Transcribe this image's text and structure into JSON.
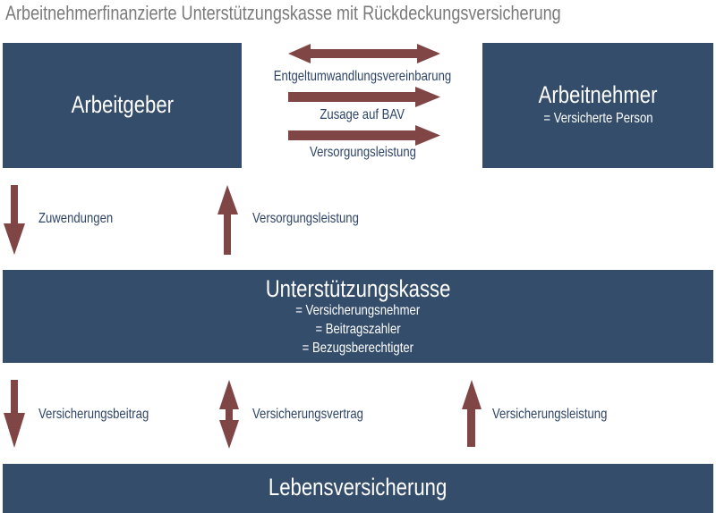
{
  "title": "Arbeitnehmerfinanzierte Unterstützungskasse mit Rückdeckungsversicherung",
  "colors": {
    "box": "#344d6b",
    "arrow": "#804545",
    "label": "#2e4467",
    "title": "#7a7a7a"
  },
  "nodes": {
    "arbeitgeber": {
      "title": "Arbeitgeber"
    },
    "arbeitnehmer": {
      "title": "Arbeitnehmer",
      "subtitle": "= Versicherte Person"
    },
    "unterstuetzungskasse": {
      "title": "Unterstützungskasse",
      "lines": [
        "= Versicherungsnehmer",
        "= Beitragszahler",
        "= Bezugsberechtigter"
      ]
    },
    "lebensversicherung": {
      "title": "Lebensversicherung"
    }
  },
  "edges": {
    "entgeltumwandlung": {
      "label": "Entgeltumwandlungsvereinbarung",
      "direction": "both"
    },
    "zusage": {
      "label": "Zusage auf BAV",
      "direction": "right"
    },
    "versorgung_top": {
      "label": "Versorgungsleistung",
      "direction": "right"
    },
    "zuwendungen": {
      "label": "Zuwendungen",
      "direction": "down"
    },
    "versorgung_mid": {
      "label": "Versorgungsleistung",
      "direction": "up"
    },
    "beitrag": {
      "label": "Versicherungsbeitrag",
      "direction": "down"
    },
    "vertrag": {
      "label": "Versicherungsvertrag",
      "direction": "both"
    },
    "leistung": {
      "label": "Versicherungsleistung",
      "direction": "up"
    }
  }
}
